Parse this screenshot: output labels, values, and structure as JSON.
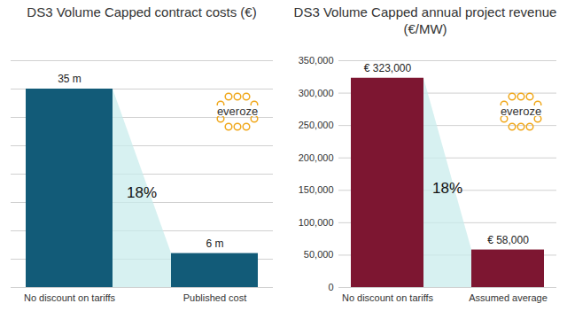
{
  "chart_data": [
    {
      "type": "bar",
      "title": "DS3 Volume Capped contract costs (€)",
      "categories": [
        "No discount on tariffs",
        "Published cost"
      ],
      "values": [
        35,
        6
      ],
      "value_labels": [
        "35 m",
        "6 m"
      ],
      "color": "#125b78",
      "ylim": [
        0,
        40
      ],
      "yticks": [
        0,
        5,
        10,
        15,
        20,
        25,
        30,
        35,
        40
      ],
      "grid": true,
      "data_labels": true,
      "tick_labels": "x",
      "annotation": "18%",
      "logo": "everoze"
    },
    {
      "type": "bar",
      "title": "DS3 Volume Capped annual project revenue (€/MW)",
      "categories": [
        "No discount on tariffs",
        "Assumed average"
      ],
      "values": [
        323000,
        58000
      ],
      "value_labels": [
        "€ 323,000",
        "€ 58,000"
      ],
      "color": "#7d1631",
      "ylim": [
        0,
        350000
      ],
      "yticks": [
        0,
        {
          "value": 50000,
          "label": "50,000"
        },
        {
          "value": 100000,
          "label": "100,000"
        },
        {
          "value": 150000,
          "label": "150,000"
        },
        {
          "value": 200000,
          "label": "200,000"
        },
        {
          "value": 250000,
          "label": "250,000"
        },
        {
          "value": 300000,
          "label": "300,000"
        },
        {
          "value": 350000,
          "label": "350,000"
        }
      ],
      "grid": true,
      "data_labels": true,
      "annotation": "18%",
      "logo": "everoze"
    }
  ]
}
